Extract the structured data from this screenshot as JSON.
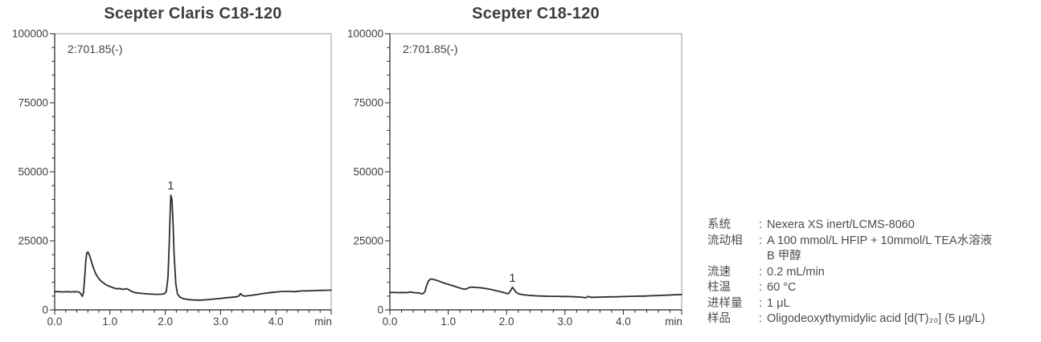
{
  "chart_data": [
    {
      "type": "line",
      "title": "Scepter Claris C18-120",
      "annotation": "2:701.85(-)",
      "xlabel": "min",
      "ylabel": "",
      "xlim": [
        0,
        5.0
      ],
      "ylim": [
        0,
        100000
      ],
      "grid": false,
      "legend": "none",
      "x_ticks_major": [
        0,
        1,
        2,
        3,
        4
      ],
      "x_tick_labels": [
        "0.0",
        "1.0",
        "2.0",
        "3.0",
        "4.0"
      ],
      "x_minor_step": 0.2,
      "y_ticks_major": [
        0,
        25000,
        50000,
        75000,
        100000
      ],
      "y_tick_labels": [
        "0",
        "25000",
        "50000",
        "75000",
        "100000"
      ],
      "y_minor_step": 5000,
      "peaks": [
        {
          "label": "1",
          "x": 2.1,
          "y": 41500
        }
      ],
      "x": [
        0.0,
        0.08,
        0.15,
        0.22,
        0.3,
        0.36,
        0.4,
        0.44,
        0.47,
        0.5,
        0.52,
        0.54,
        0.56,
        0.58,
        0.6,
        0.63,
        0.66,
        0.7,
        0.74,
        0.78,
        0.82,
        0.87,
        0.92,
        0.97,
        1.02,
        1.06,
        1.1,
        1.14,
        1.17,
        1.2,
        1.24,
        1.27,
        1.3,
        1.34,
        1.38,
        1.43,
        1.48,
        1.53,
        1.58,
        1.64,
        1.7,
        1.76,
        1.82,
        1.88,
        1.94,
        1.99,
        2.02,
        2.05,
        2.07,
        2.09,
        2.1,
        2.12,
        2.14,
        2.16,
        2.19,
        2.22,
        2.26,
        2.31,
        2.37,
        2.44,
        2.51,
        2.58,
        2.66,
        2.74,
        2.82,
        2.9,
        2.98,
        3.06,
        3.14,
        3.22,
        3.28,
        3.33,
        3.36,
        3.39,
        3.43,
        3.48,
        3.55,
        3.62,
        3.7,
        3.78,
        3.86,
        3.94,
        4.02,
        4.1,
        4.18,
        4.26,
        4.33,
        4.4,
        4.48,
        4.56,
        4.64,
        4.72,
        4.8,
        4.9,
        5.0
      ],
      "y": [
        6600,
        6600,
        6500,
        6600,
        6500,
        6600,
        6550,
        6500,
        5900,
        4900,
        6200,
        11000,
        17000,
        20500,
        21000,
        19800,
        17800,
        15200,
        13200,
        11800,
        10800,
        9900,
        9200,
        8700,
        8300,
        8000,
        7800,
        7600,
        7750,
        7600,
        7400,
        7550,
        7700,
        7300,
        6800,
        6400,
        6200,
        6050,
        5950,
        5850,
        5750,
        5700,
        5650,
        5650,
        5700,
        5900,
        6800,
        12000,
        23000,
        36000,
        41500,
        40000,
        32000,
        20000,
        9500,
        5800,
        4700,
        4200,
        3900,
        3700,
        3600,
        3550,
        3550,
        3650,
        3800,
        3950,
        4100,
        4300,
        4450,
        4600,
        4700,
        5000,
        5900,
        5300,
        5000,
        5100,
        5250,
        5450,
        5700,
        5950,
        6150,
        6350,
        6500,
        6650,
        6700,
        6700,
        6600,
        6750,
        6850,
        6900,
        6950,
        7000,
        7050,
        7100,
        7150
      ]
    },
    {
      "type": "line",
      "title": "Scepter C18-120",
      "annotation": "2:701.85(-)",
      "xlabel": "min",
      "ylabel": "",
      "xlim": [
        0,
        5.0
      ],
      "ylim": [
        0,
        100000
      ],
      "grid": false,
      "legend": "none",
      "x_ticks_major": [
        0,
        1,
        2,
        3,
        4
      ],
      "x_tick_labels": [
        "0.0",
        "1.0",
        "2.0",
        "3.0",
        "4.0"
      ],
      "x_minor_step": 0.2,
      "y_ticks_major": [
        0,
        25000,
        50000,
        75000,
        100000
      ],
      "y_tick_labels": [
        "0",
        "25000",
        "50000",
        "75000",
        "100000"
      ],
      "y_minor_step": 5000,
      "peaks": [
        {
          "label": "1",
          "x": 2.1,
          "y": 8200
        }
      ],
      "x": [
        0.0,
        0.08,
        0.15,
        0.22,
        0.28,
        0.32,
        0.35,
        0.38,
        0.42,
        0.46,
        0.5,
        0.54,
        0.57,
        0.6,
        0.63,
        0.66,
        0.7,
        0.74,
        0.78,
        0.83,
        0.88,
        0.93,
        0.98,
        1.03,
        1.08,
        1.13,
        1.18,
        1.23,
        1.27,
        1.31,
        1.35,
        1.39,
        1.43,
        1.48,
        1.53,
        1.58,
        1.63,
        1.68,
        1.73,
        1.78,
        1.83,
        1.88,
        1.93,
        1.97,
        2.01,
        2.04,
        2.07,
        2.1,
        2.13,
        2.16,
        2.2,
        2.25,
        2.31,
        2.38,
        2.46,
        2.54,
        2.62,
        2.7,
        2.78,
        2.86,
        2.94,
        3.02,
        3.1,
        3.18,
        3.26,
        3.32,
        3.36,
        3.4,
        3.44,
        3.49,
        3.56,
        3.64,
        3.72,
        3.8,
        3.88,
        3.96,
        4.04,
        4.12,
        4.2,
        4.28,
        4.36,
        4.44,
        4.52,
        4.6,
        4.68,
        4.76,
        4.84,
        4.92,
        5.0
      ],
      "y": [
        6300,
        6300,
        6250,
        6300,
        6250,
        6350,
        6500,
        6350,
        6250,
        6200,
        6100,
        5850,
        5900,
        6600,
        8800,
        10500,
        11200,
        11050,
        10800,
        10500,
        10100,
        9700,
        9350,
        9050,
        8750,
        8400,
        8050,
        7700,
        7500,
        7600,
        8000,
        8250,
        8200,
        8100,
        8050,
        7950,
        7800,
        7600,
        7400,
        7150,
        6900,
        6650,
        6400,
        6150,
        5850,
        6050,
        7000,
        8200,
        7400,
        6400,
        5900,
        5600,
        5400,
        5250,
        5150,
        5050,
        5000,
        4950,
        4900,
        4900,
        4850,
        4850,
        4800,
        4750,
        4650,
        4500,
        4400,
        4900,
        4550,
        4550,
        4600,
        4650,
        4700,
        4700,
        4750,
        4800,
        4850,
        4900,
        4950,
        5000,
        5000,
        5100,
        5150,
        5200,
        5300,
        5350,
        5450,
        5500,
        5550
      ]
    }
  ],
  "conditions": {
    "separator": ":",
    "rows": [
      {
        "label": "系统",
        "value": "Nexera XS inert/LCMS-8060"
      },
      {
        "label": "流动相",
        "value": "A 100 mmol/L HFIP + 10mmol/L TEA水溶液\nB 甲醇"
      },
      {
        "label": "流速",
        "value": "0.2 mL/min"
      },
      {
        "label": "柱温",
        "value": "60 °C"
      },
      {
        "label": "进样量",
        "value": "1 μL"
      },
      {
        "label": "样品",
        "value": "Oligodeoxythymidylic acid [d(T)₂₀] (5 μg/L)"
      }
    ]
  },
  "colors": {
    "background": "#ffffff",
    "title_text": "#3d3d3d",
    "axis_text": "#3f3f3f",
    "axis_line": "#222222",
    "box_border": "#9a9a9a",
    "trace": "#322b26",
    "peak_label": "#2a3854",
    "conditions_text": "#4c4c4c"
  }
}
